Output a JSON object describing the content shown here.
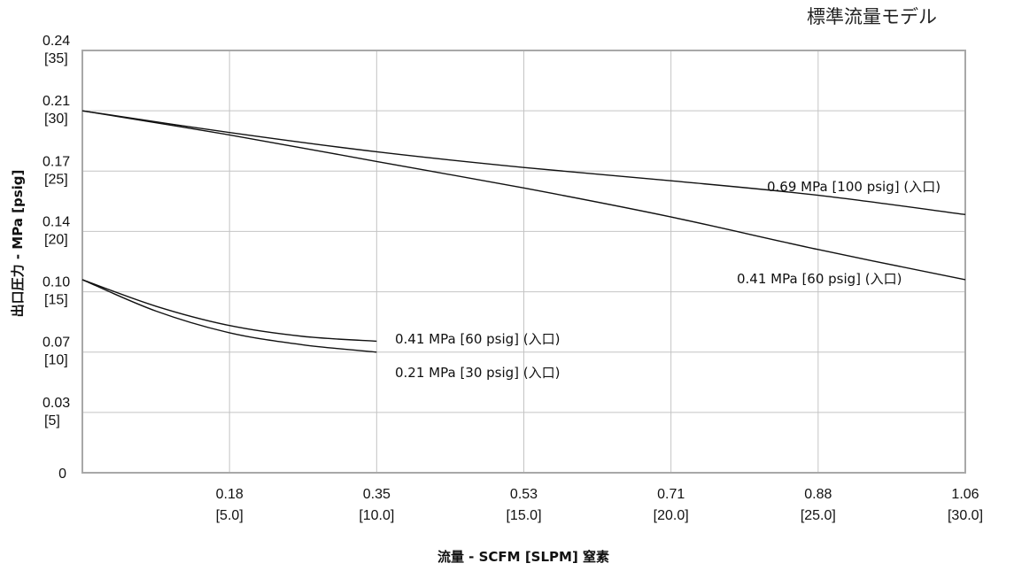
{
  "chart_data": {
    "type": "line",
    "title": "標準流量モデル",
    "xlabel": "流量 - SCFM [SLPM] 窒素",
    "ylabel": "出口圧力 - MPa [psig]",
    "xlim": [
      0,
      30
    ],
    "ylim": [
      0,
      35
    ],
    "grid": true,
    "x_ticks": [
      {
        "value": 5,
        "label": "0.18",
        "sub": "[5.0]"
      },
      {
        "value": 10,
        "label": "0.35",
        "sub": "[10.0]"
      },
      {
        "value": 15,
        "label": "0.53",
        "sub": "[15.0]"
      },
      {
        "value": 20,
        "label": "0.71",
        "sub": "[20.0]"
      },
      {
        "value": 25,
        "label": "0.88",
        "sub": "[25.0]"
      },
      {
        "value": 30,
        "label": "1.06",
        "sub": "[30.0]"
      }
    ],
    "y_ticks": [
      {
        "value": 0,
        "label": "0",
        "sub": ""
      },
      {
        "value": 5,
        "label": "0.03",
        "sub": "[5]"
      },
      {
        "value": 10,
        "label": "0.07",
        "sub": "[10]"
      },
      {
        "value": 15,
        "label": "0.10",
        "sub": "[15]"
      },
      {
        "value": 20,
        "label": "0.14",
        "sub": "[20]"
      },
      {
        "value": 25,
        "label": "0.17",
        "sub": "[25]"
      },
      {
        "value": 30,
        "label": "0.21",
        "sub": "[30]"
      },
      {
        "value": 35,
        "label": "0.24",
        "sub": "[35]"
      }
    ],
    "series": [
      {
        "name": "0.69 MPa [100 psig] (入口)",
        "x": [
          0,
          5,
          10,
          15,
          20,
          25,
          30
        ],
        "y": [
          30,
          28.2,
          26.6,
          25.3,
          24.2,
          23.0,
          21.4
        ]
      },
      {
        "name": "0.41 MPa [60 psig] (入口)",
        "x": [
          0,
          5,
          10,
          15,
          20,
          25,
          30
        ],
        "y": [
          30,
          28.0,
          25.8,
          23.6,
          21.2,
          18.5,
          16.0
        ]
      },
      {
        "name": "0.41 MPa [60 psig] (入口)",
        "x": [
          0,
          2.5,
          5,
          7.5,
          10
        ],
        "y": [
          16.0,
          13.8,
          12.2,
          11.3,
          10.9
        ]
      },
      {
        "name": "0.21 MPa [30 psig] (入口)",
        "x": [
          0,
          2.5,
          5,
          7.5,
          10
        ],
        "y": [
          16.0,
          13.4,
          11.6,
          10.6,
          10.0
        ]
      }
    ]
  }
}
